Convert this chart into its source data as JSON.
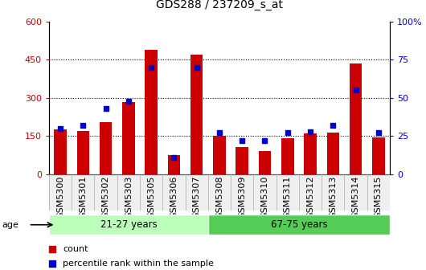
{
  "title": "GDS288 / 237209_s_at",
  "samples": [
    "GSM5300",
    "GSM5301",
    "GSM5302",
    "GSM5303",
    "GSM5305",
    "GSM5306",
    "GSM5307",
    "GSM5308",
    "GSM5309",
    "GSM5310",
    "GSM5311",
    "GSM5312",
    "GSM5313",
    "GSM5314",
    "GSM5315"
  ],
  "counts": [
    175,
    170,
    205,
    285,
    490,
    75,
    470,
    150,
    105,
    90,
    140,
    160,
    165,
    435,
    145
  ],
  "percentiles": [
    30,
    32,
    43,
    48,
    70,
    11,
    70,
    27,
    22,
    22,
    27,
    28,
    32,
    55,
    27
  ],
  "group1_label": "21-27 years",
  "group2_label": "67-75 years",
  "group1_count": 7,
  "group2_count": 8,
  "ylim_left": [
    0,
    600
  ],
  "ylim_right": [
    0,
    100
  ],
  "yticks_left": [
    0,
    150,
    300,
    450,
    600
  ],
  "yticks_right": [
    0,
    25,
    50,
    75,
    100
  ],
  "bar_color": "#cc0000",
  "dot_color": "#0000cc",
  "group1_bg": "#bbffbb",
  "group2_bg": "#55cc55",
  "bar_width": 0.55,
  "title_fontsize": 10,
  "tick_fontsize": 8,
  "label_fontsize": 8
}
